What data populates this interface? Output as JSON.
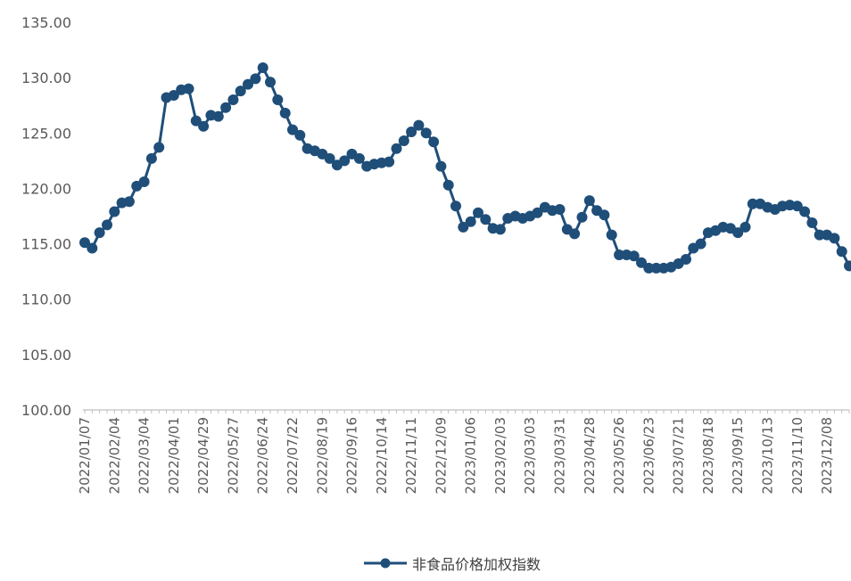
{
  "chart_data": {
    "type": "line",
    "title": "",
    "xlabel": "",
    "ylabel": "",
    "ylim": [
      100,
      135
    ],
    "yticks": [
      "100.00",
      "105.00",
      "110.00",
      "115.00",
      "120.00",
      "125.00",
      "130.00",
      "135.00"
    ],
    "xtick_labels": [
      "2022/01/07",
      "2022/02/04",
      "2022/03/04",
      "2022/04/01",
      "2022/04/29",
      "2022/05/27",
      "2022/06/24",
      "2022/07/22",
      "2022/08/19",
      "2022/09/16",
      "2022/10/14",
      "2022/11/11",
      "2022/12/09",
      "2023/01/06",
      "2023/02/03",
      "2023/03/03",
      "2023/03/31",
      "2023/04/28",
      "2023/05/26",
      "2023/06/23",
      "2023/07/21",
      "2023/08/18",
      "2023/09/15",
      "2023/10/13",
      "2023/11/10",
      "2023/12/08"
    ],
    "grid": false,
    "legend_position": "bottom-center",
    "colors": {
      "series": "#1f4e79",
      "axis": "#bfbfbf",
      "text": "#595959"
    },
    "series": [
      {
        "name": "非食品价格加权指数",
        "values": [
          115.1,
          114.6,
          116.0,
          116.7,
          117.9,
          118.7,
          118.8,
          120.2,
          120.6,
          122.7,
          123.7,
          128.2,
          128.4,
          128.9,
          129.0,
          126.1,
          125.6,
          126.6,
          126.5,
          127.3,
          128.0,
          128.8,
          129.4,
          129.9,
          130.9,
          129.6,
          128.0,
          126.8,
          125.3,
          124.8,
          123.6,
          123.4,
          123.1,
          122.7,
          122.1,
          122.5,
          123.1,
          122.7,
          122.0,
          122.2,
          122.3,
          122.4,
          123.6,
          124.3,
          125.1,
          125.7,
          125.0,
          124.2,
          122.0,
          120.3,
          118.4,
          116.5,
          117.0,
          117.8,
          117.2,
          116.4,
          116.3,
          117.3,
          117.5,
          117.3,
          117.5,
          117.8,
          118.3,
          118.0,
          118.1,
          116.3,
          115.9,
          117.4,
          118.9,
          118.0,
          117.6,
          115.8,
          114.0,
          114.0,
          113.9,
          113.3,
          112.8,
          112.8,
          112.8,
          112.9,
          113.2,
          113.6,
          114.6,
          115.0,
          116.0,
          116.2,
          116.5,
          116.4,
          116.0,
          116.5,
          118.6,
          118.6,
          118.3,
          118.1,
          118.4,
          118.5,
          118.4,
          117.9,
          116.9,
          115.8,
          115.8,
          115.5,
          114.3,
          113.0
        ]
      }
    ]
  }
}
